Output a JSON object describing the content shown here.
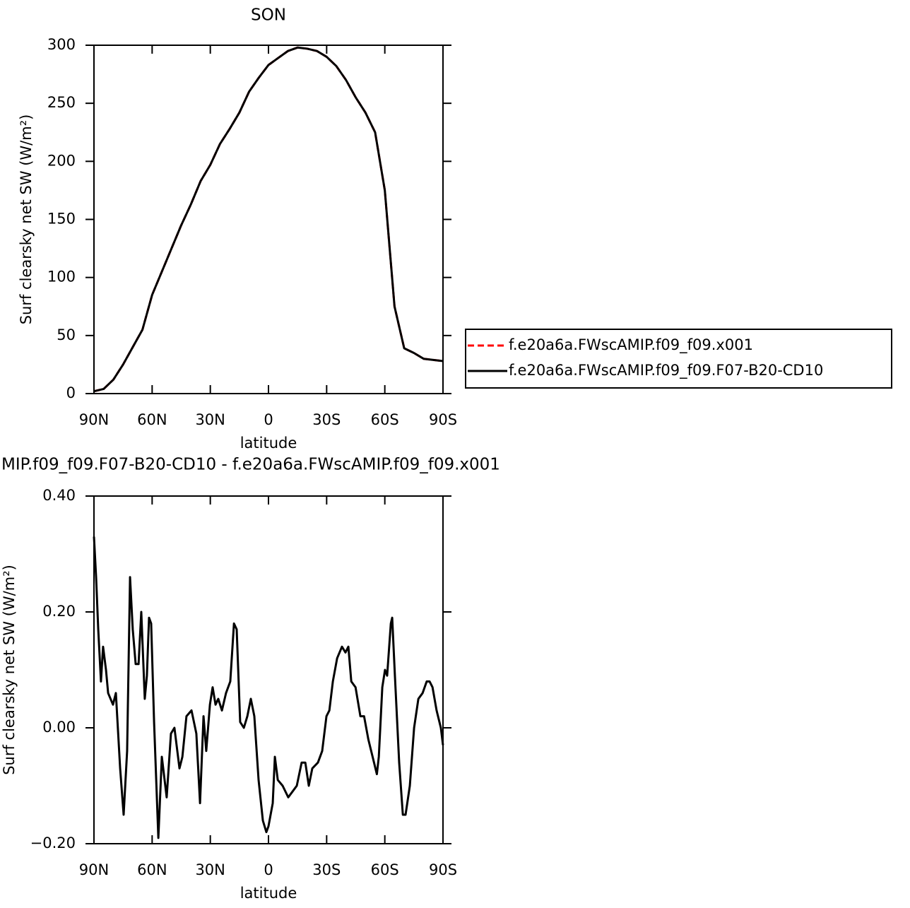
{
  "chart_data": [
    {
      "type": "line",
      "title": "SON",
      "ylabel": "Surf clearsky net SW (W/m²)",
      "xlabel": "latitude",
      "x": [
        90,
        85,
        80,
        75,
        70,
        65,
        60,
        55,
        50,
        45,
        40,
        35,
        30,
        25,
        20,
        15,
        10,
        5,
        0,
        -5,
        -10,
        -15,
        -20,
        -25,
        -30,
        -35,
        -40,
        -45,
        -50,
        -55,
        -60,
        -65,
        -70,
        -75,
        -80,
        -85,
        -90
      ],
      "series": [
        {
          "name": "f.e20a6a.FWscAMIP.f09_f09.x001",
          "color": "#ff0000",
          "style": "dashed",
          "values": [
            2,
            4,
            12,
            25,
            40,
            55,
            85,
            105,
            125,
            145,
            163,
            183,
            197,
            215,
            228,
            242,
            260,
            272,
            283,
            289,
            295,
            298,
            297,
            295,
            290,
            282,
            270,
            255,
            242,
            225,
            175,
            75,
            39,
            35,
            30,
            29,
            28
          ]
        },
        {
          "name": "f.e20a6a.FWscAMIP.f09_f09.F07-B20-CD10",
          "color": "#000000",
          "style": "solid",
          "values": [
            2,
            4,
            12,
            25,
            40,
            55,
            85,
            105,
            125,
            145,
            163,
            183,
            197,
            215,
            228,
            242,
            260,
            272,
            283,
            289,
            295,
            298,
            297,
            295,
            290,
            282,
            270,
            255,
            242,
            225,
            175,
            75,
            39,
            35,
            30,
            29,
            28
          ]
        }
      ],
      "xlim": [
        90,
        -90
      ],
      "xticks": [
        {
          "value": 90,
          "label": "90N"
        },
        {
          "value": 60,
          "label": "60N"
        },
        {
          "value": 30,
          "label": "30N"
        },
        0,
        {
          "value": -30,
          "label": "30S"
        },
        {
          "value": -60,
          "label": "60S"
        },
        {
          "value": -90,
          "label": "90S"
        }
      ],
      "ylim": [
        0,
        300
      ],
      "yticks": [
        0,
        50,
        100,
        150,
        200,
        250,
        300
      ],
      "legend": "right"
    },
    {
      "type": "line",
      "title": "MIP.f09_f09.F07-B20-CD10 - f.e20a6a.FWscAMIP.f09_f09.x001",
      "ylabel": "Surf clearsky net SW (W/m²)",
      "xlabel": "latitude",
      "x": [
        90,
        88.9,
        87.8,
        86.4,
        85.3,
        83.8,
        82.7,
        80.2,
        78.7,
        76.5,
        74.7,
        72.9,
        71.4,
        70.0,
        68.5,
        67.0,
        65.6,
        63.8,
        62.7,
        61.6,
        60.5,
        59.0,
        56.8,
        55.0,
        52.5,
        50.3,
        48.5,
        45.9,
        44.4,
        42.3,
        39.7,
        37.2,
        35.3,
        33.5,
        32.1,
        30.2,
        28.8,
        27.3,
        25.9,
        24.0,
        21.9,
        19.7,
        17.8,
        16.4,
        14.6,
        12.7,
        10.9,
        9.1,
        7.3,
        5.1,
        2.9,
        1.1,
        0.0,
        -2.2,
        -3.3,
        -4.8,
        -7.3,
        -10.2,
        -12.4,
        -14.6,
        -17.1,
        -19.0,
        -20.8,
        -22.6,
        -25.5,
        -27.7,
        -29.9,
        -31.4,
        -33.2,
        -35.4,
        -37.9,
        -39.7,
        -41.2,
        -42.7,
        -44.9,
        -47.4,
        -49.3,
        -51.5,
        -53.7,
        -55.9,
        -56.9,
        -58.7,
        -60.1,
        -61.2,
        -63.1,
        -63.8,
        -65.2,
        -67.4,
        -69.3,
        -70.7,
        -72.9,
        -75.1,
        -77.3,
        -79.5,
        -81.6,
        -83.1,
        -84.6,
        -86.7,
        -88.9,
        -90
      ],
      "series": [
        {
          "color": "#000000",
          "style": "solid",
          "values": [
            0.33,
            0.26,
            0.17,
            0.08,
            0.14,
            0.1,
            0.06,
            0.04,
            0.06,
            -0.07,
            -0.15,
            -0.04,
            0.26,
            0.17,
            0.11,
            0.11,
            0.2,
            0.05,
            0.09,
            0.19,
            0.18,
            0.01,
            -0.19,
            -0.05,
            -0.12,
            -0.01,
            0.0,
            -0.07,
            -0.05,
            0.02,
            0.03,
            -0.01,
            -0.13,
            0.02,
            -0.04,
            0.04,
            0.07,
            0.04,
            0.05,
            0.03,
            0.06,
            0.08,
            0.18,
            0.17,
            0.01,
            0.0,
            0.02,
            0.05,
            0.02,
            -0.09,
            -0.16,
            -0.18,
            -0.17,
            -0.13,
            -0.05,
            -0.09,
            -0.1,
            -0.12,
            -0.11,
            -0.1,
            -0.06,
            -0.06,
            -0.1,
            -0.07,
            -0.06,
            -0.04,
            0.02,
            0.03,
            0.08,
            0.12,
            0.14,
            0.13,
            0.14,
            0.08,
            0.07,
            0.02,
            0.02,
            -0.02,
            -0.05,
            -0.08,
            -0.05,
            0.07,
            0.1,
            0.09,
            0.18,
            0.19,
            0.09,
            -0.06,
            -0.15,
            -0.15,
            -0.1,
            0.0,
            0.05,
            0.06,
            0.08,
            0.08,
            0.07,
            0.03,
            0.0,
            -0.03
          ]
        }
      ],
      "xlim": [
        90,
        -90
      ],
      "xticks": [
        {
          "value": 90,
          "label": "90N"
        },
        {
          "value": 60,
          "label": "60N"
        },
        {
          "value": 30,
          "label": "30N"
        },
        0,
        {
          "value": -30,
          "label": "30S"
        },
        {
          "value": -60,
          "label": "60S"
        },
        {
          "value": -90,
          "label": "90S"
        }
      ],
      "ylim": [
        -0.2,
        0.4
      ],
      "yticks": [
        {
          "value": -0.2,
          "label": "−0.20"
        },
        {
          "value": 0,
          "label": "0.00"
        },
        {
          "value": 0.2,
          "label": "0.20"
        },
        {
          "value": 0.4,
          "label": "0.40"
        }
      ]
    }
  ]
}
